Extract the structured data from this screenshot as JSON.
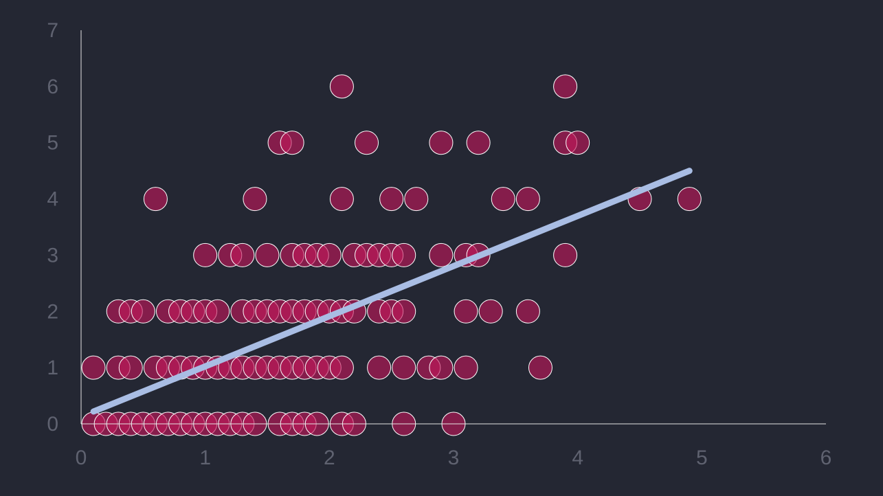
{
  "chart_data": {
    "type": "scatter",
    "title": "",
    "xlabel": "",
    "ylabel": "",
    "xlim": [
      0,
      6
    ],
    "ylim": [
      0,
      7
    ],
    "x_ticks": [
      "0",
      "1",
      "2",
      "3",
      "4",
      "5",
      "6"
    ],
    "y_ticks": [
      "0",
      "1",
      "2",
      "3",
      "4",
      "5",
      "6",
      "7"
    ],
    "grid": false,
    "legend": "none",
    "colors": {
      "background": "#242733",
      "point_fill": "#C2185B",
      "point_stroke": "#FFFFFF",
      "trendline": "#A9BDE4",
      "axis": "#E6E6E6",
      "tick_label": "#5F6270"
    },
    "series": [
      {
        "points": [
          [
            0.1,
            0
          ],
          [
            0.2,
            0
          ],
          [
            0.3,
            0
          ],
          [
            0.4,
            0
          ],
          [
            0.5,
            0
          ],
          [
            0.6,
            0
          ],
          [
            0.7,
            0
          ],
          [
            0.8,
            0
          ],
          [
            0.9,
            0
          ],
          [
            1.0,
            0
          ],
          [
            1.1,
            0
          ],
          [
            1.2,
            0
          ],
          [
            1.3,
            0
          ],
          [
            1.4,
            0
          ],
          [
            1.6,
            0
          ],
          [
            1.7,
            0
          ],
          [
            1.8,
            0
          ],
          [
            1.9,
            0
          ],
          [
            2.1,
            0
          ],
          [
            2.2,
            0
          ],
          [
            2.6,
            0
          ],
          [
            3.0,
            0
          ],
          [
            0.1,
            1
          ],
          [
            0.3,
            1
          ],
          [
            0.4,
            1
          ],
          [
            0.6,
            1
          ],
          [
            0.7,
            1
          ],
          [
            0.8,
            1
          ],
          [
            0.9,
            1
          ],
          [
            1.0,
            1
          ],
          [
            1.1,
            1
          ],
          [
            1.2,
            1
          ],
          [
            1.3,
            1
          ],
          [
            1.4,
            1
          ],
          [
            1.5,
            1
          ],
          [
            1.6,
            1
          ],
          [
            1.7,
            1
          ],
          [
            1.8,
            1
          ],
          [
            1.9,
            1
          ],
          [
            2.0,
            1
          ],
          [
            2.1,
            1
          ],
          [
            2.4,
            1
          ],
          [
            2.6,
            1
          ],
          [
            2.8,
            1
          ],
          [
            2.9,
            1
          ],
          [
            3.1,
            1
          ],
          [
            3.7,
            1
          ],
          [
            0.3,
            2
          ],
          [
            0.4,
            2
          ],
          [
            0.5,
            2
          ],
          [
            0.7,
            2
          ],
          [
            0.8,
            2
          ],
          [
            0.9,
            2
          ],
          [
            1.0,
            2
          ],
          [
            1.1,
            2
          ],
          [
            1.3,
            2
          ],
          [
            1.4,
            2
          ],
          [
            1.5,
            2
          ],
          [
            1.6,
            2
          ],
          [
            1.7,
            2
          ],
          [
            1.8,
            2
          ],
          [
            1.9,
            2
          ],
          [
            2.0,
            2
          ],
          [
            2.1,
            2
          ],
          [
            2.2,
            2
          ],
          [
            2.4,
            2
          ],
          [
            2.5,
            2
          ],
          [
            2.6,
            2
          ],
          [
            3.1,
            2
          ],
          [
            3.3,
            2
          ],
          [
            3.6,
            2
          ],
          [
            1.0,
            3
          ],
          [
            1.2,
            3
          ],
          [
            1.3,
            3
          ],
          [
            1.5,
            3
          ],
          [
            1.7,
            3
          ],
          [
            1.8,
            3
          ],
          [
            1.9,
            3
          ],
          [
            2.0,
            3
          ],
          [
            2.2,
            3
          ],
          [
            2.3,
            3
          ],
          [
            2.4,
            3
          ],
          [
            2.5,
            3
          ],
          [
            2.6,
            3
          ],
          [
            2.9,
            3
          ],
          [
            3.1,
            3
          ],
          [
            3.2,
            3
          ],
          [
            3.9,
            3
          ],
          [
            0.6,
            4
          ],
          [
            1.4,
            4
          ],
          [
            2.1,
            4
          ],
          [
            2.5,
            4
          ],
          [
            2.7,
            4
          ],
          [
            3.4,
            4
          ],
          [
            3.6,
            4
          ],
          [
            4.5,
            4
          ],
          [
            4.9,
            4
          ],
          [
            1.6,
            5
          ],
          [
            1.7,
            5
          ],
          [
            2.3,
            5
          ],
          [
            2.9,
            5
          ],
          [
            3.2,
            5
          ],
          [
            3.9,
            5
          ],
          [
            4.0,
            5
          ],
          [
            2.1,
            6
          ],
          [
            3.9,
            6
          ]
        ]
      }
    ],
    "trendline": {
      "x": [
        0.1,
        4.9
      ],
      "y": [
        0.22,
        4.5
      ]
    }
  }
}
